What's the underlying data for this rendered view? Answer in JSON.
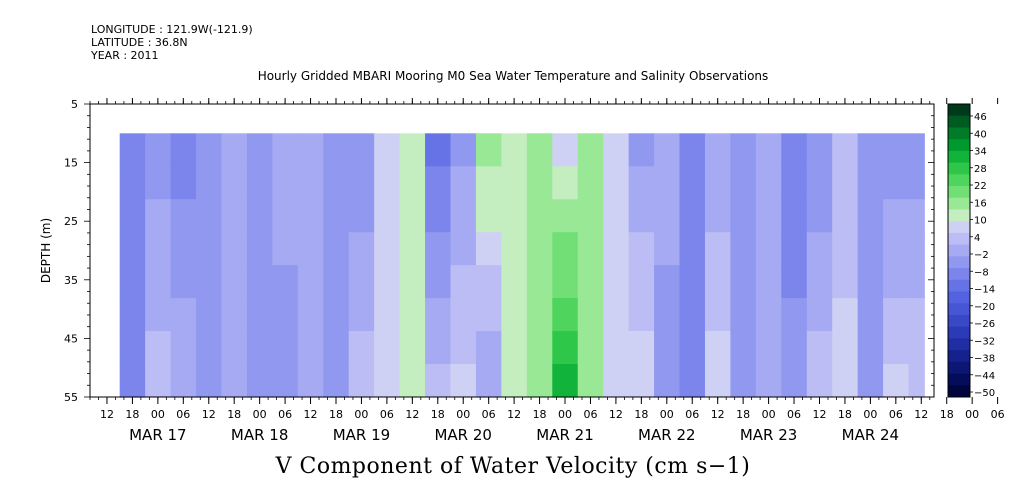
{
  "header": {
    "longitude": "LONGITUDE : 121.9W(-121.9)",
    "latitude": "LATITUDE : 36.8N",
    "year": "YEAR : 2011"
  },
  "title": "Hourly Gridded MBARI Mooring M0 Sea Water Temperature and Salinity Observations",
  "variable_title": "V Component of Water Velocity (cm s−1)",
  "chart_data": {
    "type": "heatmap",
    "title": "Hourly Gridded MBARI Mooring M0 Sea Water Temperature and Salinity Observations",
    "variable": "V Component of Water Velocity (cm s−1)",
    "ylabel": "DEPTH (m)",
    "ylim": [
      55,
      5
    ],
    "y_ticks": [
      5,
      15,
      25,
      35,
      45,
      55
    ],
    "data_depth_range": [
      10,
      55
    ],
    "x_range": [
      "2011-03-16T08:00",
      "2011-03-24T15:00"
    ],
    "data_time_range": [
      "2011-03-16T15:00",
      "2011-03-24T12:00"
    ],
    "x_tick_hours": [
      "12",
      "18",
      "00",
      "06",
      "12",
      "18",
      "00",
      "06",
      "12",
      "18",
      "00",
      "06",
      "12",
      "18",
      "00",
      "06",
      "12",
      "18",
      "00",
      "06",
      "12",
      "18",
      "00",
      "06",
      "12",
      "18",
      "00",
      "06",
      "12",
      "18",
      "00",
      "06",
      "12",
      "18",
      "00",
      "06"
    ],
    "x_day_labels": [
      "MAR 17",
      "MAR 18",
      "MAR 19",
      "MAR 20",
      "MAR 21",
      "MAR 22",
      "MAR 23",
      "MAR 24"
    ],
    "colorbar_labels": [
      "46",
      "40",
      "34",
      "28",
      "22",
      "16",
      "10",
      "4",
      "-2",
      "-8",
      "-14",
      "-20",
      "-26",
      "-32",
      "-38",
      "-44",
      "-50"
    ],
    "colorbar_colors": [
      "#003a1c",
      "#005b22",
      "#007c28",
      "#00992e",
      "#12b33a",
      "#2fc749",
      "#4fd45d",
      "#72de76",
      "#99e896",
      "#c4eec0",
      "#cfd1f4",
      "#bbbdf4",
      "#a6aaf2",
      "#9098ef",
      "#7b85ec",
      "#6673e6",
      "#5363df",
      "#4656d4",
      "#3848c6",
      "#2b3ab6",
      "#1f2ea3",
      "#15218c",
      "#0c1673",
      "#050d5a",
      "#000540"
    ],
    "columns": [
      {
        "time": "2011-03-16T15:00",
        "v_top": -8,
        "v_bottom": -8
      },
      {
        "time": "2011-03-16T21:00",
        "v_top": -6,
        "v_bottom": 2
      },
      {
        "time": "2011-03-17T03:00",
        "v_top": -10,
        "v_bottom": 0
      },
      {
        "time": "2011-03-17T09:00",
        "v_top": -8,
        "v_bottom": -6
      },
      {
        "time": "2011-03-17T15:00",
        "v_top": 0,
        "v_bottom": -2
      },
      {
        "time": "2011-03-17T21:00",
        "v_top": -6,
        "v_bottom": -8
      },
      {
        "time": "2011-03-18T03:00",
        "v_top": -2,
        "v_bottom": -6
      },
      {
        "time": "2011-03-18T09:00",
        "v_top": -4,
        "v_bottom": 0
      },
      {
        "time": "2011-03-18T15:00",
        "v_top": -6,
        "v_bottom": -4
      },
      {
        "time": "2011-03-18T21:00",
        "v_top": -8,
        "v_bottom": 2
      },
      {
        "time": "2011-03-19T03:00",
        "v_top": 6,
        "v_bottom": 4
      },
      {
        "time": "2011-03-19T09:00",
        "v_top": 10,
        "v_bottom": 8
      },
      {
        "time": "2011-03-19T15:00",
        "v_top": -14,
        "v_bottom": 2
      },
      {
        "time": "2011-03-19T21:00",
        "v_top": -6,
        "v_bottom": 6
      },
      {
        "time": "2011-03-20T03:00",
        "v_top": 14,
        "v_bottom": -4
      },
      {
        "time": "2011-03-20T09:00",
        "v_top": 12,
        "v_bottom": 8
      },
      {
        "time": "2011-03-20T15:00",
        "v_top": 16,
        "v_bottom": 12
      },
      {
        "time": "2011-03-20T21:00",
        "v_top": 6,
        "v_bottom": 30
      },
      {
        "time": "2011-03-21T03:00",
        "v_top": 14,
        "v_bottom": 12
      },
      {
        "time": "2011-03-21T09:00",
        "v_top": 4,
        "v_bottom": 8
      },
      {
        "time": "2011-03-21T15:00",
        "v_top": -6,
        "v_bottom": 8
      },
      {
        "time": "2011-03-21T21:00",
        "v_top": 0,
        "v_bottom": -8
      },
      {
        "time": "2011-03-22T03:00",
        "v_top": -10,
        "v_bottom": -10
      },
      {
        "time": "2011-03-22T09:00",
        "v_top": -4,
        "v_bottom": 6
      },
      {
        "time": "2011-03-22T15:00",
        "v_top": -6,
        "v_bottom": -6
      },
      {
        "time": "2011-03-22T21:00",
        "v_top": -2,
        "v_bottom": -4
      },
      {
        "time": "2011-03-23T03:00",
        "v_top": -12,
        "v_bottom": -6
      },
      {
        "time": "2011-03-23T09:00",
        "v_top": -8,
        "v_bottom": 2
      },
      {
        "time": "2011-03-23T15:00",
        "v_top": 0,
        "v_bottom": 6
      },
      {
        "time": "2011-03-23T21:00",
        "v_top": -4,
        "v_bottom": -6
      },
      {
        "time": "2011-03-24T03:00",
        "v_top": -8,
        "v_bottom": 6
      },
      {
        "time": "2011-03-24T09:00",
        "v_top": -6,
        "v_bottom": 4
      }
    ]
  }
}
